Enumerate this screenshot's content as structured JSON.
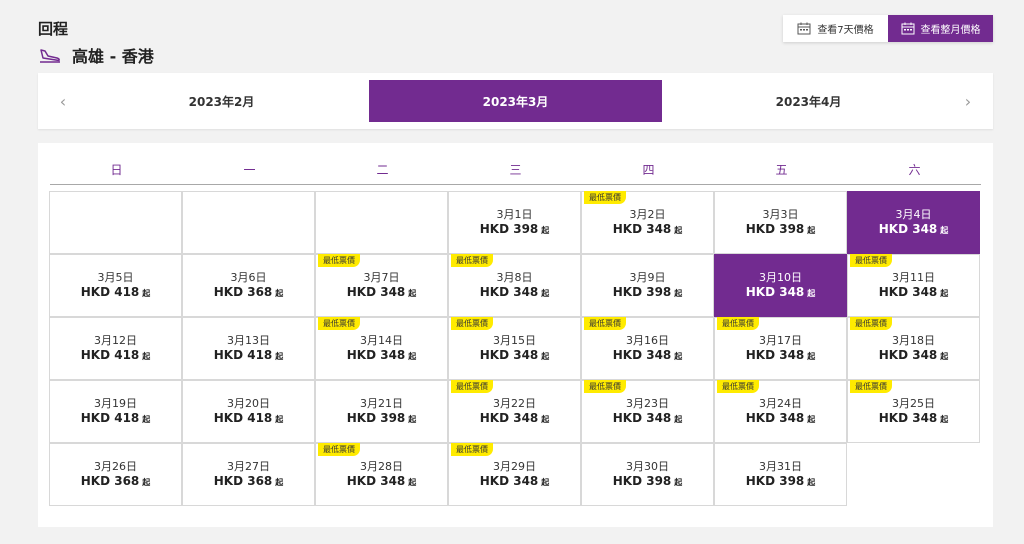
{
  "header": {
    "title": "回程",
    "route": "高雄 - 香港"
  },
  "view_toggle": {
    "week_label": "查看7天價格",
    "month_label": "查看整月價格"
  },
  "months": [
    "2023年2月",
    "2023年3月",
    "2023年4月"
  ],
  "weekdays": [
    "日",
    "一",
    "二",
    "三",
    "四",
    "五",
    "六"
  ],
  "badge_text": "最低票價",
  "price_suffix": "起",
  "days": [
    {
      "date": "3月1日",
      "price": "HKD 398"
    },
    {
      "date": "3月2日",
      "price": "HKD 348",
      "badge": true
    },
    {
      "date": "3月3日",
      "price": "HKD 398"
    },
    {
      "date": "3月4日",
      "price": "HKD 348",
      "selected": true
    },
    {
      "date": "3月5日",
      "price": "HKD 418"
    },
    {
      "date": "3月6日",
      "price": "HKD 368"
    },
    {
      "date": "3月7日",
      "price": "HKD 348",
      "badge": true
    },
    {
      "date": "3月8日",
      "price": "HKD 348",
      "badge": true
    },
    {
      "date": "3月9日",
      "price": "HKD 398"
    },
    {
      "date": "3月10日",
      "price": "HKD 348",
      "selected": true
    },
    {
      "date": "3月11日",
      "price": "HKD 348",
      "badge": true
    },
    {
      "date": "3月12日",
      "price": "HKD 418"
    },
    {
      "date": "3月13日",
      "price": "HKD 418"
    },
    {
      "date": "3月14日",
      "price": "HKD 348",
      "badge": true
    },
    {
      "date": "3月15日",
      "price": "HKD 348",
      "badge": true
    },
    {
      "date": "3月16日",
      "price": "HKD 348",
      "badge": true
    },
    {
      "date": "3月17日",
      "price": "HKD 348",
      "badge": true
    },
    {
      "date": "3月18日",
      "price": "HKD 348",
      "badge": true
    },
    {
      "date": "3月19日",
      "price": "HKD 418"
    },
    {
      "date": "3月20日",
      "price": "HKD 418"
    },
    {
      "date": "3月21日",
      "price": "HKD 398"
    },
    {
      "date": "3月22日",
      "price": "HKD 348",
      "badge": true
    },
    {
      "date": "3月23日",
      "price": "HKD 348",
      "badge": true
    },
    {
      "date": "3月24日",
      "price": "HKD 348",
      "badge": true
    },
    {
      "date": "3月25日",
      "price": "HKD 348",
      "badge": true
    },
    {
      "date": "3月26日",
      "price": "HKD 368"
    },
    {
      "date": "3月27日",
      "price": "HKD 368"
    },
    {
      "date": "3月28日",
      "price": "HKD 348",
      "badge": true
    },
    {
      "date": "3月29日",
      "price": "HKD 348",
      "badge": true
    },
    {
      "date": "3月30日",
      "price": "HKD 398"
    },
    {
      "date": "3月31日",
      "price": "HKD 398"
    }
  ],
  "colors": {
    "accent": "#722b90",
    "badge": "#ffeb00"
  }
}
